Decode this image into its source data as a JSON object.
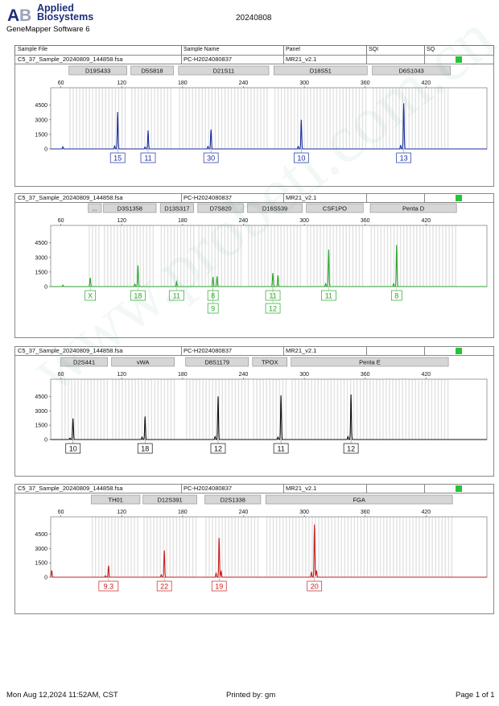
{
  "header": {
    "brand_line1": "Applied",
    "brand_line2": "Biosystems",
    "app_name": "GeneMapper Software 6",
    "run_date": "20240808"
  },
  "table_header": {
    "sample_file": "Sample File",
    "sample_name": "Sample Name",
    "panel": "Panel",
    "sqi": "SQI",
    "sq": "SQ"
  },
  "watermark": "www.probeti.com.cn",
  "footer": {
    "datetime": "Mon Aug 12,2024 11:52AM, CST",
    "printed_by": "Printed by: gm",
    "page": "Page 1 of 1"
  },
  "colors": {
    "blue": "#1b2fa0",
    "green": "#2ba52b",
    "black": "#111111",
    "red": "#c81e1e",
    "sq_ok": "#27c33a"
  },
  "chart_data": [
    {
      "type": "line",
      "dye": "blue",
      "color": "#1b2fa0",
      "sample_file": "C5_37_Sample_20240809_144858.fsa",
      "sample_name": "PC-H2024080837",
      "panel": "MR21_v2.1",
      "xlim": [
        50,
        480
      ],
      "ylim": [
        0,
        6300
      ],
      "xticks": [
        "60",
        "120",
        "180",
        "240",
        "300",
        "360",
        "420"
      ],
      "yticks": [
        "4500",
        "3000",
        "1500",
        "0"
      ],
      "markers": [
        {
          "name": "D19S433",
          "start": 68,
          "end": 125
        },
        {
          "name": "D5S818",
          "start": 129,
          "end": 171
        },
        {
          "name": "D21S11",
          "start": 176,
          "end": 265
        },
        {
          "name": "D18S51",
          "start": 270,
          "end": 362
        },
        {
          "name": "D6S1043",
          "start": 367,
          "end": 444
        }
      ],
      "peaks": [
        {
          "x": 116,
          "h": 3800
        },
        {
          "x": 113,
          "h": 300
        },
        {
          "x": 146,
          "h": 1900
        },
        {
          "x": 143,
          "h": 200
        },
        {
          "x": 208,
          "h": 2000
        },
        {
          "x": 205,
          "h": 250
        },
        {
          "x": 297,
          "h": 3000
        },
        {
          "x": 294,
          "h": 250
        },
        {
          "x": 398,
          "h": 4700
        },
        {
          "x": 395,
          "h": 350
        },
        {
          "x": 62,
          "h": 220
        }
      ],
      "alleles": [
        {
          "x": 116,
          "rows": [
            [
              "15"
            ]
          ]
        },
        {
          "x": 146,
          "rows": [
            [
              "11"
            ]
          ]
        },
        {
          "x": 208,
          "rows": [
            [
              "30"
            ]
          ]
        },
        {
          "x": 297,
          "rows": [
            [
              "10"
            ]
          ]
        },
        {
          "x": 398,
          "rows": [
            [
              "13"
            ]
          ]
        }
      ]
    },
    {
      "type": "line",
      "dye": "green",
      "color": "#2ba52b",
      "sample_file": "C5_37_Sample_20240809_144858.fsa",
      "sample_name": "PC-H2024080837",
      "panel": "MR21_v2.1",
      "xlim": [
        50,
        480
      ],
      "ylim": [
        0,
        6300
      ],
      "xticks": [
        "60",
        "120",
        "180",
        "240",
        "300",
        "360",
        "420"
      ],
      "yticks": [
        "4500",
        "3000",
        "1500",
        "0"
      ],
      "markers": [
        {
          "name": "...",
          "start": 87,
          "end": 100
        },
        {
          "name": "D3S1358",
          "start": 102,
          "end": 154
        },
        {
          "name": "D13S317",
          "start": 158,
          "end": 191
        },
        {
          "name": "D7S820",
          "start": 195,
          "end": 240
        },
        {
          "name": "D16S539",
          "start": 244,
          "end": 298
        },
        {
          "name": "CSF1PO",
          "start": 302,
          "end": 358
        },
        {
          "name": "Penta D",
          "start": 365,
          "end": 450
        }
      ],
      "peaks": [
        {
          "x": 89,
          "h": 900
        },
        {
          "x": 136,
          "h": 2200
        },
        {
          "x": 133,
          "h": 250
        },
        {
          "x": 174,
          "h": 500
        },
        {
          "x": 210,
          "h": 1000
        },
        {
          "x": 214,
          "h": 1050
        },
        {
          "x": 269,
          "h": 1400
        },
        {
          "x": 274,
          "h": 1150
        },
        {
          "x": 324,
          "h": 3800
        },
        {
          "x": 321,
          "h": 300
        },
        {
          "x": 391,
          "h": 4300
        },
        {
          "x": 388,
          "h": 300
        },
        {
          "x": 62,
          "h": 150
        }
      ],
      "alleles": [
        {
          "x": 89,
          "rows": [
            [
              "X"
            ]
          ]
        },
        {
          "x": 136,
          "rows": [
            [
              "18"
            ]
          ]
        },
        {
          "x": 174,
          "rows": [
            [
              "11"
            ]
          ]
        },
        {
          "x": 210,
          "rows": [
            [
              "8"
            ],
            [
              "9"
            ]
          ]
        },
        {
          "x": 269,
          "rows": [
            [
              "11"
            ],
            [
              "12"
            ]
          ]
        },
        {
          "x": 324,
          "rows": [
            [
              "11"
            ]
          ]
        },
        {
          "x": 391,
          "rows": [
            [
              "8"
            ]
          ]
        }
      ]
    },
    {
      "type": "line",
      "dye": "yellow",
      "color": "#111111",
      "sample_file": "C5_37_Sample_20240809_144858.fsa",
      "sample_name": "PC-H2024080837",
      "panel": "MR21_v2.1",
      "xlim": [
        50,
        480
      ],
      "ylim": [
        0,
        6300
      ],
      "xticks": [
        "60",
        "120",
        "180",
        "240",
        "300",
        "360",
        "420"
      ],
      "yticks": [
        "4500",
        "3000",
        "1500",
        "0"
      ],
      "markers": [
        {
          "name": "D2S441",
          "start": 60,
          "end": 106
        },
        {
          "name": "vWA",
          "start": 110,
          "end": 172
        },
        {
          "name": "D8S1179",
          "start": 183,
          "end": 245
        },
        {
          "name": "TPOX",
          "start": 249,
          "end": 283
        },
        {
          "name": "Penta E",
          "start": 287,
          "end": 442
        }
      ],
      "peaks": [
        {
          "x": 72,
          "h": 2200
        },
        {
          "x": 69,
          "h": 150
        },
        {
          "x": 143,
          "h": 2400
        },
        {
          "x": 140,
          "h": 250
        },
        {
          "x": 215,
          "h": 4500
        },
        {
          "x": 212,
          "h": 300
        },
        {
          "x": 277,
          "h": 4600
        },
        {
          "x": 274,
          "h": 250
        },
        {
          "x": 346,
          "h": 4700
        },
        {
          "x": 343,
          "h": 300
        }
      ],
      "alleles": [
        {
          "x": 72,
          "rows": [
            [
              "10"
            ]
          ]
        },
        {
          "x": 143,
          "rows": [
            [
              "18"
            ]
          ]
        },
        {
          "x": 215,
          "rows": [
            [
              "12"
            ]
          ]
        },
        {
          "x": 277,
          "rows": [
            [
              "11"
            ]
          ]
        },
        {
          "x": 346,
          "rows": [
            [
              "12"
            ]
          ]
        }
      ]
    },
    {
      "type": "line",
      "dye": "red",
      "color": "#c81e1e",
      "sample_file": "C5_37_Sample_20240809_144858.fsa",
      "sample_name": "PC-H2024080837",
      "panel": "MR21_v2.1",
      "xlim": [
        50,
        480
      ],
      "ylim": [
        0,
        6300
      ],
      "xticks": [
        "60",
        "120",
        "180",
        "240",
        "300",
        "360",
        "420"
      ],
      "yticks": [
        "4500",
        "3000",
        "1500",
        "0"
      ],
      "markers": [
        {
          "name": "TH01",
          "start": 90,
          "end": 138
        },
        {
          "name": "D12S391",
          "start": 141,
          "end": 194
        },
        {
          "name": "D2S1338",
          "start": 202,
          "end": 257
        },
        {
          "name": "FGA",
          "start": 262,
          "end": 446
        }
      ],
      "peaks": [
        {
          "x": 107,
          "h": 1200
        },
        {
          "x": 104,
          "h": 150
        },
        {
          "x": 162,
          "h": 2800
        },
        {
          "x": 159,
          "h": 250
        },
        {
          "x": 216,
          "h": 4100
        },
        {
          "x": 213,
          "h": 400
        },
        {
          "x": 218,
          "h": 600
        },
        {
          "x": 310,
          "h": 5500
        },
        {
          "x": 307,
          "h": 500
        },
        {
          "x": 312,
          "h": 700
        },
        {
          "x": 51,
          "h": 700
        }
      ],
      "alleles": [
        {
          "x": 107,
          "rows": [
            [
              "9.3"
            ]
          ]
        },
        {
          "x": 162,
          "rows": [
            [
              "22"
            ]
          ]
        },
        {
          "x": 216,
          "rows": [
            [
              "19"
            ]
          ]
        },
        {
          "x": 310,
          "rows": [
            [
              "20"
            ]
          ]
        }
      ]
    }
  ]
}
